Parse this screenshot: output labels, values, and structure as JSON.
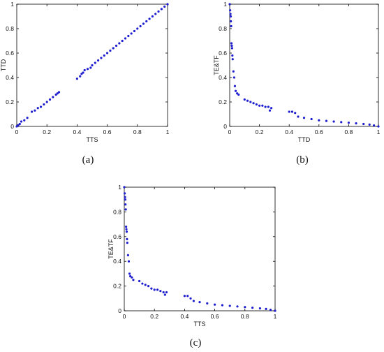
{
  "figure": {
    "captions": [
      "(a)",
      "(b)",
      "(c)"
    ]
  },
  "chart_data": [
    {
      "type": "scatter",
      "xlabel": "TTS",
      "ylabel": "TTD",
      "xlim": [
        0,
        1
      ],
      "ylim": [
        0,
        1
      ],
      "xticks": [
        "0",
        "0.2",
        "0.4",
        "0.6",
        "0.8",
        "1"
      ],
      "yticks": [
        "0",
        "0.2",
        "0.4",
        "0.6",
        "0.8",
        "1"
      ],
      "grid": false,
      "color": "#1f1fd0",
      "x": [
        0.0,
        0.01,
        0.02,
        0.03,
        0.05,
        0.07,
        0.1,
        0.12,
        0.14,
        0.16,
        0.18,
        0.2,
        0.22,
        0.24,
        0.26,
        0.27,
        0.28,
        0.4,
        0.42,
        0.43,
        0.44,
        0.45,
        0.47,
        0.49,
        0.5,
        0.52,
        0.54,
        0.56,
        0.58,
        0.6,
        0.62,
        0.64,
        0.66,
        0.68,
        0.7,
        0.72,
        0.74,
        0.76,
        0.78,
        0.8,
        0.82,
        0.84,
        0.86,
        0.88,
        0.9,
        0.92,
        0.94,
        0.96,
        0.98,
        1.0
      ],
      "y": [
        0.0,
        0.01,
        0.02,
        0.04,
        0.05,
        0.07,
        0.12,
        0.13,
        0.15,
        0.16,
        0.18,
        0.2,
        0.22,
        0.24,
        0.26,
        0.27,
        0.28,
        0.39,
        0.41,
        0.43,
        0.44,
        0.46,
        0.47,
        0.48,
        0.5,
        0.52,
        0.54,
        0.56,
        0.58,
        0.6,
        0.62,
        0.64,
        0.66,
        0.68,
        0.7,
        0.72,
        0.74,
        0.76,
        0.78,
        0.8,
        0.82,
        0.84,
        0.86,
        0.88,
        0.9,
        0.92,
        0.94,
        0.96,
        0.98,
        1.0
      ]
    },
    {
      "type": "scatter",
      "xlabel": "TTD",
      "ylabel": "TE&TF",
      "xlim": [
        0,
        1
      ],
      "ylim": [
        0,
        1
      ],
      "xticks": [
        "0",
        "0.2",
        "0.4",
        "0.6",
        "0.8",
        "1"
      ],
      "yticks": [
        "0",
        "0.2",
        "0.4",
        "0.6",
        "0.8",
        "1"
      ],
      "grid": false,
      "color": "#1f1fd0",
      "x": [
        0.0,
        0.003,
        0.005,
        0.007,
        0.008,
        0.01,
        0.012,
        0.014,
        0.016,
        0.018,
        0.02,
        0.025,
        0.03,
        0.035,
        0.04,
        0.05,
        0.06,
        0.1,
        0.12,
        0.14,
        0.16,
        0.18,
        0.2,
        0.22,
        0.24,
        0.26,
        0.27,
        0.28,
        0.4,
        0.42,
        0.44,
        0.46,
        0.5,
        0.55,
        0.6,
        0.65,
        0.7,
        0.75,
        0.8,
        0.85,
        0.9,
        0.94,
        0.97,
        1.0
      ],
      "y": [
        1.0,
        0.95,
        0.92,
        0.9,
        0.86,
        0.82,
        0.68,
        0.66,
        0.64,
        0.58,
        0.55,
        0.45,
        0.4,
        0.33,
        0.29,
        0.27,
        0.26,
        0.22,
        0.21,
        0.2,
        0.19,
        0.18,
        0.17,
        0.17,
        0.16,
        0.16,
        0.13,
        0.15,
        0.12,
        0.12,
        0.11,
        0.08,
        0.07,
        0.06,
        0.05,
        0.045,
        0.04,
        0.035,
        0.03,
        0.025,
        0.02,
        0.015,
        0.008,
        0.0
      ]
    },
    {
      "type": "scatter",
      "xlabel": "TTS",
      "ylabel": "TE&TF",
      "xlim": [
        0,
        1
      ],
      "ylim": [
        0,
        1
      ],
      "xticks": [
        "0",
        "0.2",
        "0.4",
        "0.6",
        "0.8",
        "1"
      ],
      "yticks": [
        "0",
        "0.2",
        "0.4",
        "0.6",
        "0.8",
        "1"
      ],
      "grid": false,
      "color": "#1f1fd0",
      "x": [
        0.0,
        0.003,
        0.005,
        0.007,
        0.008,
        0.01,
        0.012,
        0.014,
        0.016,
        0.018,
        0.02,
        0.025,
        0.03,
        0.035,
        0.04,
        0.05,
        0.06,
        0.1,
        0.12,
        0.14,
        0.16,
        0.18,
        0.2,
        0.22,
        0.24,
        0.26,
        0.27,
        0.28,
        0.4,
        0.42,
        0.44,
        0.46,
        0.5,
        0.55,
        0.6,
        0.65,
        0.7,
        0.75,
        0.8,
        0.85,
        0.9,
        0.94,
        0.97,
        1.0
      ],
      "y": [
        1.0,
        0.95,
        0.92,
        0.9,
        0.86,
        0.82,
        0.68,
        0.66,
        0.64,
        0.58,
        0.55,
        0.45,
        0.4,
        0.3,
        0.28,
        0.27,
        0.25,
        0.24,
        0.22,
        0.21,
        0.2,
        0.18,
        0.17,
        0.17,
        0.16,
        0.15,
        0.13,
        0.15,
        0.12,
        0.12,
        0.1,
        0.08,
        0.07,
        0.06,
        0.05,
        0.045,
        0.04,
        0.035,
        0.03,
        0.025,
        0.02,
        0.015,
        0.008,
        0.0
      ]
    }
  ]
}
